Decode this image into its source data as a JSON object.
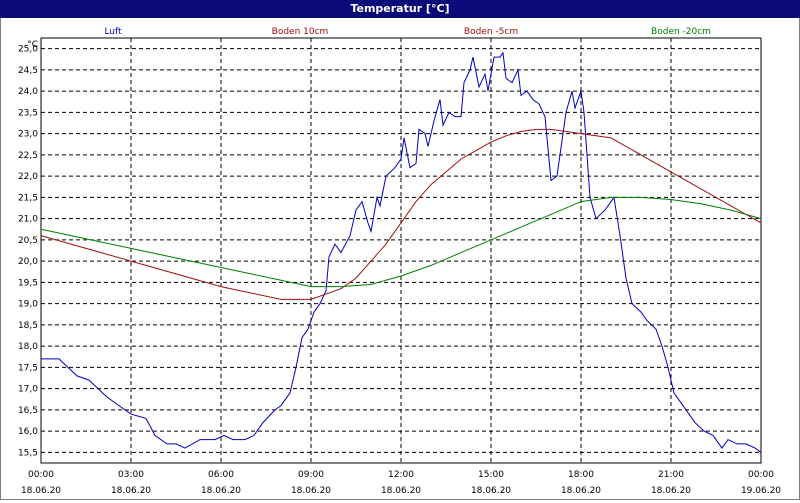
{
  "window": {
    "title": "Temperatur [°C]"
  },
  "chart_data": {
    "type": "line",
    "title": "Temperatur [°C]",
    "ylabel": "°C",
    "xlabel": "",
    "ylim": [
      15.25,
      25.25
    ],
    "xlim": [
      0,
      24
    ],
    "grid": true,
    "legend_position": "top",
    "y_ticks": [
      "15,5",
      "16,0",
      "16,5",
      "17,0",
      "17,5",
      "18,0",
      "18,5",
      "19,0",
      "19,5",
      "20,0",
      "20,5",
      "21,0",
      "21,5",
      "22,0",
      "22,5",
      "23,0",
      "23,5",
      "24,0",
      "24,5",
      "25,0"
    ],
    "x_ticks": [
      {
        "time": "00:00",
        "date": "18.06.20"
      },
      {
        "time": "03:00",
        "date": "18.06.20"
      },
      {
        "time": "06:00",
        "date": "18.06.20"
      },
      {
        "time": "09:00",
        "date": "18.06.20"
      },
      {
        "time": "12:00",
        "date": "18.06.20"
      },
      {
        "time": "15:00",
        "date": "18.06.20"
      },
      {
        "time": "18:00",
        "date": "18.06.20"
      },
      {
        "time": "21:00",
        "date": "18.06.20"
      },
      {
        "time": "00:00",
        "date": "19.06.20"
      }
    ],
    "series": [
      {
        "name": "Luft",
        "color": "#0000c0",
        "points": [
          [
            0,
            17.7
          ],
          [
            0.6,
            17.7
          ],
          [
            0.9,
            17.5
          ],
          [
            1.2,
            17.3
          ],
          [
            1.6,
            17.2
          ],
          [
            1.9,
            17.0
          ],
          [
            2.2,
            16.8
          ],
          [
            2.6,
            16.6
          ],
          [
            3.0,
            16.4
          ],
          [
            3.5,
            16.3
          ],
          [
            3.8,
            15.9
          ],
          [
            4.2,
            15.7
          ],
          [
            4.5,
            15.7
          ],
          [
            4.8,
            15.6
          ],
          [
            5.3,
            15.8
          ],
          [
            5.8,
            15.8
          ],
          [
            6.1,
            15.9
          ],
          [
            6.4,
            15.8
          ],
          [
            6.8,
            15.8
          ],
          [
            7.1,
            15.9
          ],
          [
            7.4,
            16.2
          ],
          [
            7.8,
            16.5
          ],
          [
            8.0,
            16.6
          ],
          [
            8.3,
            16.9
          ],
          [
            8.5,
            17.5
          ],
          [
            8.7,
            18.2
          ],
          [
            8.9,
            18.4
          ],
          [
            9.1,
            18.8
          ],
          [
            9.3,
            19.0
          ],
          [
            9.5,
            19.3
          ],
          [
            9.6,
            20.1
          ],
          [
            9.8,
            20.4
          ],
          [
            10.0,
            20.2
          ],
          [
            10.3,
            20.6
          ],
          [
            10.5,
            21.2
          ],
          [
            10.7,
            21.4
          ],
          [
            10.9,
            20.9
          ],
          [
            11.0,
            20.7
          ],
          [
            11.2,
            21.5
          ],
          [
            11.3,
            21.3
          ],
          [
            11.5,
            22.0
          ],
          [
            11.8,
            22.2
          ],
          [
            12.0,
            22.4
          ],
          [
            12.1,
            22.9
          ],
          [
            12.3,
            22.2
          ],
          [
            12.5,
            22.3
          ],
          [
            12.6,
            23.1
          ],
          [
            12.8,
            23.0
          ],
          [
            12.9,
            22.7
          ],
          [
            13.1,
            23.3
          ],
          [
            13.3,
            23.8
          ],
          [
            13.4,
            23.2
          ],
          [
            13.6,
            23.5
          ],
          [
            13.8,
            23.4
          ],
          [
            14.0,
            23.4
          ],
          [
            14.1,
            24.2
          ],
          [
            14.3,
            24.5
          ],
          [
            14.4,
            24.8
          ],
          [
            14.6,
            24.1
          ],
          [
            14.8,
            24.4
          ],
          [
            14.9,
            24.0
          ],
          [
            15.1,
            24.8
          ],
          [
            15.3,
            24.8
          ],
          [
            15.4,
            24.9
          ],
          [
            15.5,
            24.3
          ],
          [
            15.7,
            24.2
          ],
          [
            15.9,
            24.5
          ],
          [
            16.0,
            23.9
          ],
          [
            16.2,
            24.0
          ],
          [
            16.4,
            23.8
          ],
          [
            16.6,
            23.7
          ],
          [
            16.8,
            23.4
          ],
          [
            17.0,
            21.9
          ],
          [
            17.2,
            22.0
          ],
          [
            17.4,
            23.0
          ],
          [
            17.5,
            23.5
          ],
          [
            17.7,
            24.0
          ],
          [
            17.8,
            23.6
          ],
          [
            18.0,
            24.0
          ],
          [
            18.1,
            23.5
          ],
          [
            18.3,
            21.5
          ],
          [
            18.5,
            21.0
          ],
          [
            18.8,
            21.2
          ],
          [
            19.1,
            21.5
          ],
          [
            19.3,
            20.6
          ],
          [
            19.5,
            19.6
          ],
          [
            19.7,
            19.0
          ],
          [
            20.0,
            18.8
          ],
          [
            20.2,
            18.6
          ],
          [
            20.5,
            18.4
          ],
          [
            20.7,
            18.0
          ],
          [
            20.9,
            17.5
          ],
          [
            21.1,
            16.9
          ],
          [
            21.3,
            16.7
          ],
          [
            21.6,
            16.4
          ],
          [
            21.8,
            16.2
          ],
          [
            22.1,
            16.0
          ],
          [
            22.4,
            15.9
          ],
          [
            22.7,
            15.6
          ],
          [
            22.9,
            15.8
          ],
          [
            23.2,
            15.7
          ],
          [
            23.5,
            15.7
          ],
          [
            23.8,
            15.6
          ],
          [
            24.0,
            15.5
          ]
        ]
      },
      {
        "name": "Boden 10cm",
        "color": "#a01010",
        "points": [
          [
            0,
            20.6
          ],
          [
            1.0,
            20.4
          ],
          [
            2.0,
            20.2
          ],
          [
            3.0,
            20.0
          ],
          [
            4.0,
            19.8
          ],
          [
            5.0,
            19.6
          ],
          [
            6.0,
            19.4
          ],
          [
            7.0,
            19.25
          ],
          [
            8.0,
            19.1
          ],
          [
            9.0,
            19.1
          ],
          [
            10.0,
            19.35
          ],
          [
            10.5,
            19.6
          ],
          [
            11.0,
            20.0
          ],
          [
            11.5,
            20.4
          ],
          [
            12.0,
            20.9
          ],
          [
            12.5,
            21.4
          ],
          [
            13.0,
            21.8
          ],
          [
            13.5,
            22.1
          ],
          [
            14.0,
            22.4
          ],
          [
            14.5,
            22.6
          ],
          [
            15.0,
            22.8
          ],
          [
            15.5,
            22.95
          ],
          [
            16.0,
            23.05
          ],
          [
            16.5,
            23.1
          ],
          [
            17.0,
            23.1
          ],
          [
            17.5,
            23.05
          ],
          [
            18.0,
            23.0
          ],
          [
            18.5,
            22.95
          ],
          [
            19.0,
            22.9
          ],
          [
            19.5,
            22.7
          ],
          [
            20.0,
            22.5
          ],
          [
            20.5,
            22.3
          ],
          [
            21.0,
            22.1
          ],
          [
            21.5,
            21.9
          ],
          [
            22.0,
            21.7
          ],
          [
            22.5,
            21.5
          ],
          [
            23.0,
            21.3
          ],
          [
            23.5,
            21.1
          ],
          [
            24.0,
            20.9
          ]
        ]
      },
      {
        "name": "Boden -5cm",
        "color": "#a01010",
        "points": []
      },
      {
        "name": "Boden -20cm",
        "color": "#008000",
        "points": [
          [
            0,
            20.75
          ],
          [
            1.0,
            20.6
          ],
          [
            2.0,
            20.45
          ],
          [
            3.0,
            20.3
          ],
          [
            4.0,
            20.15
          ],
          [
            5.0,
            20.0
          ],
          [
            6.0,
            19.85
          ],
          [
            7.0,
            19.7
          ],
          [
            8.0,
            19.55
          ],
          [
            9.0,
            19.4
          ],
          [
            10.0,
            19.4
          ],
          [
            11.0,
            19.45
          ],
          [
            12.0,
            19.65
          ],
          [
            13.0,
            19.9
          ],
          [
            14.0,
            20.2
          ],
          [
            15.0,
            20.5
          ],
          [
            16.0,
            20.8
          ],
          [
            17.0,
            21.1
          ],
          [
            18.0,
            21.4
          ],
          [
            19.0,
            21.5
          ],
          [
            20.0,
            21.5
          ],
          [
            21.0,
            21.45
          ],
          [
            22.0,
            21.35
          ],
          [
            23.0,
            21.2
          ],
          [
            24.0,
            21.0
          ]
        ]
      }
    ]
  }
}
